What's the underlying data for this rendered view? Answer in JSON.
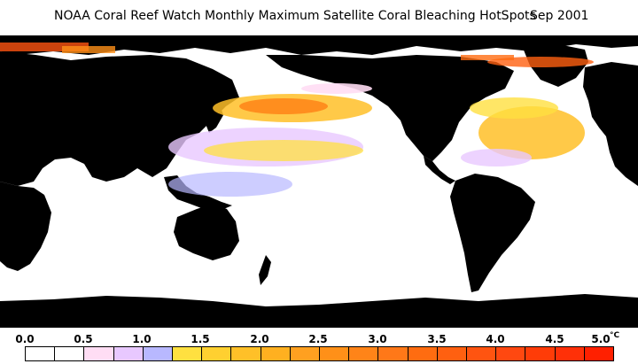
{
  "title": {
    "main": "NOAA Coral Reef Watch Monthly Maximum Satellite Coral Bleaching HotSpots",
    "date": "Sep 2001"
  },
  "legend": {
    "unit": "°C",
    "tick_labels": [
      "0.0",
      "0.5",
      "1.0",
      "1.5",
      "2.0",
      "2.5",
      "3.0",
      "3.5",
      "4.0",
      "4.5",
      "5.0"
    ],
    "bins": [
      {
        "color": "#ffffff"
      },
      {
        "color": "#ffffff"
      },
      {
        "color": "#ffddf4"
      },
      {
        "color": "#e8c8ff"
      },
      {
        "color": "#b8b8ff"
      },
      {
        "color": "#ffe040"
      },
      {
        "color": "#ffd030"
      },
      {
        "color": "#ffc028"
      },
      {
        "color": "#ffb020"
      },
      {
        "color": "#ffa020"
      },
      {
        "color": "#ff9018"
      },
      {
        "color": "#ff8418"
      },
      {
        "color": "#ff7818"
      },
      {
        "color": "#ff6c10"
      },
      {
        "color": "#ff6010"
      },
      {
        "color": "#ff5410"
      },
      {
        "color": "#ff4810"
      },
      {
        "color": "#ff3c08"
      },
      {
        "color": "#ff3008"
      },
      {
        "color": "#ff2000"
      }
    ]
  },
  "map": {
    "land_color": "#000000",
    "ocean_color": "#ffffff"
  }
}
